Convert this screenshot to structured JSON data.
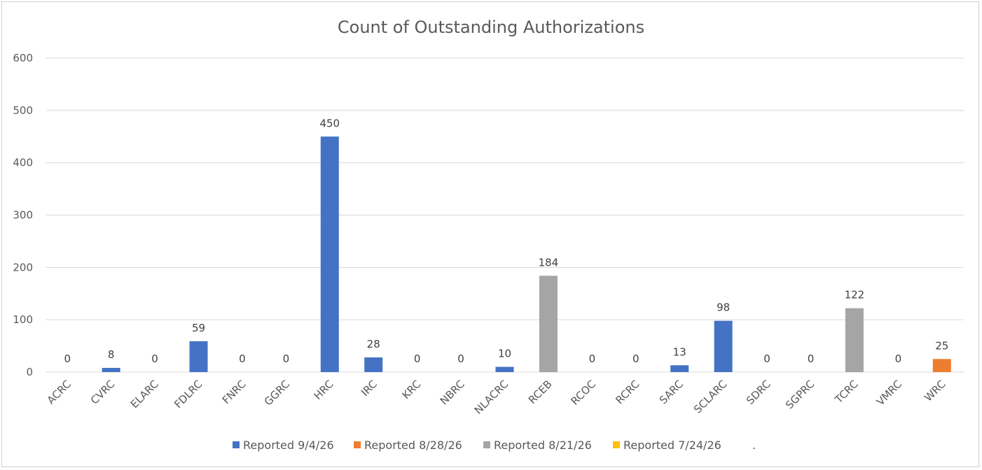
{
  "chart_data": {
    "type": "bar",
    "title": "Count of Outstanding Authorizations",
    "xlabel": "",
    "ylabel": "",
    "ylim": [
      0,
      600
    ],
    "yticks": [
      0,
      100,
      200,
      300,
      400,
      500,
      600
    ],
    "grid": true,
    "legend_position": "bottom",
    "categories": [
      "ACRC",
      "CVRC",
      "ELARC",
      "FDLRC",
      "FNRC",
      "GGRC",
      "HRC",
      "IRC",
      "KRC",
      "NBRC",
      "NLACRC",
      "RCEB",
      "RCOC",
      "RCRC",
      "SARC",
      "SCLARC",
      "SDRC",
      "SGPRC",
      "TCRC",
      "VMRC",
      "WRC"
    ],
    "values": [
      0,
      8,
      0,
      59,
      0,
      0,
      450,
      28,
      0,
      0,
      10,
      184,
      0,
      0,
      13,
      98,
      0,
      0,
      122,
      0,
      25
    ],
    "bar_series": [
      0,
      0,
      0,
      0,
      0,
      0,
      0,
      0,
      0,
      0,
      0,
      2,
      0,
      0,
      0,
      0,
      0,
      0,
      2,
      0,
      1
    ],
    "series": [
      {
        "name": "Reported 9/4/26",
        "color": "#4472c4"
      },
      {
        "name": "Reported 8/28/26",
        "color": "#ed7d31"
      },
      {
        "name": "Reported 8/21/26",
        "color": "#a5a5a5"
      },
      {
        "name": "Reported 7/24/26",
        "color": "#ffc000"
      }
    ],
    "legend_trailing_text": "."
  }
}
